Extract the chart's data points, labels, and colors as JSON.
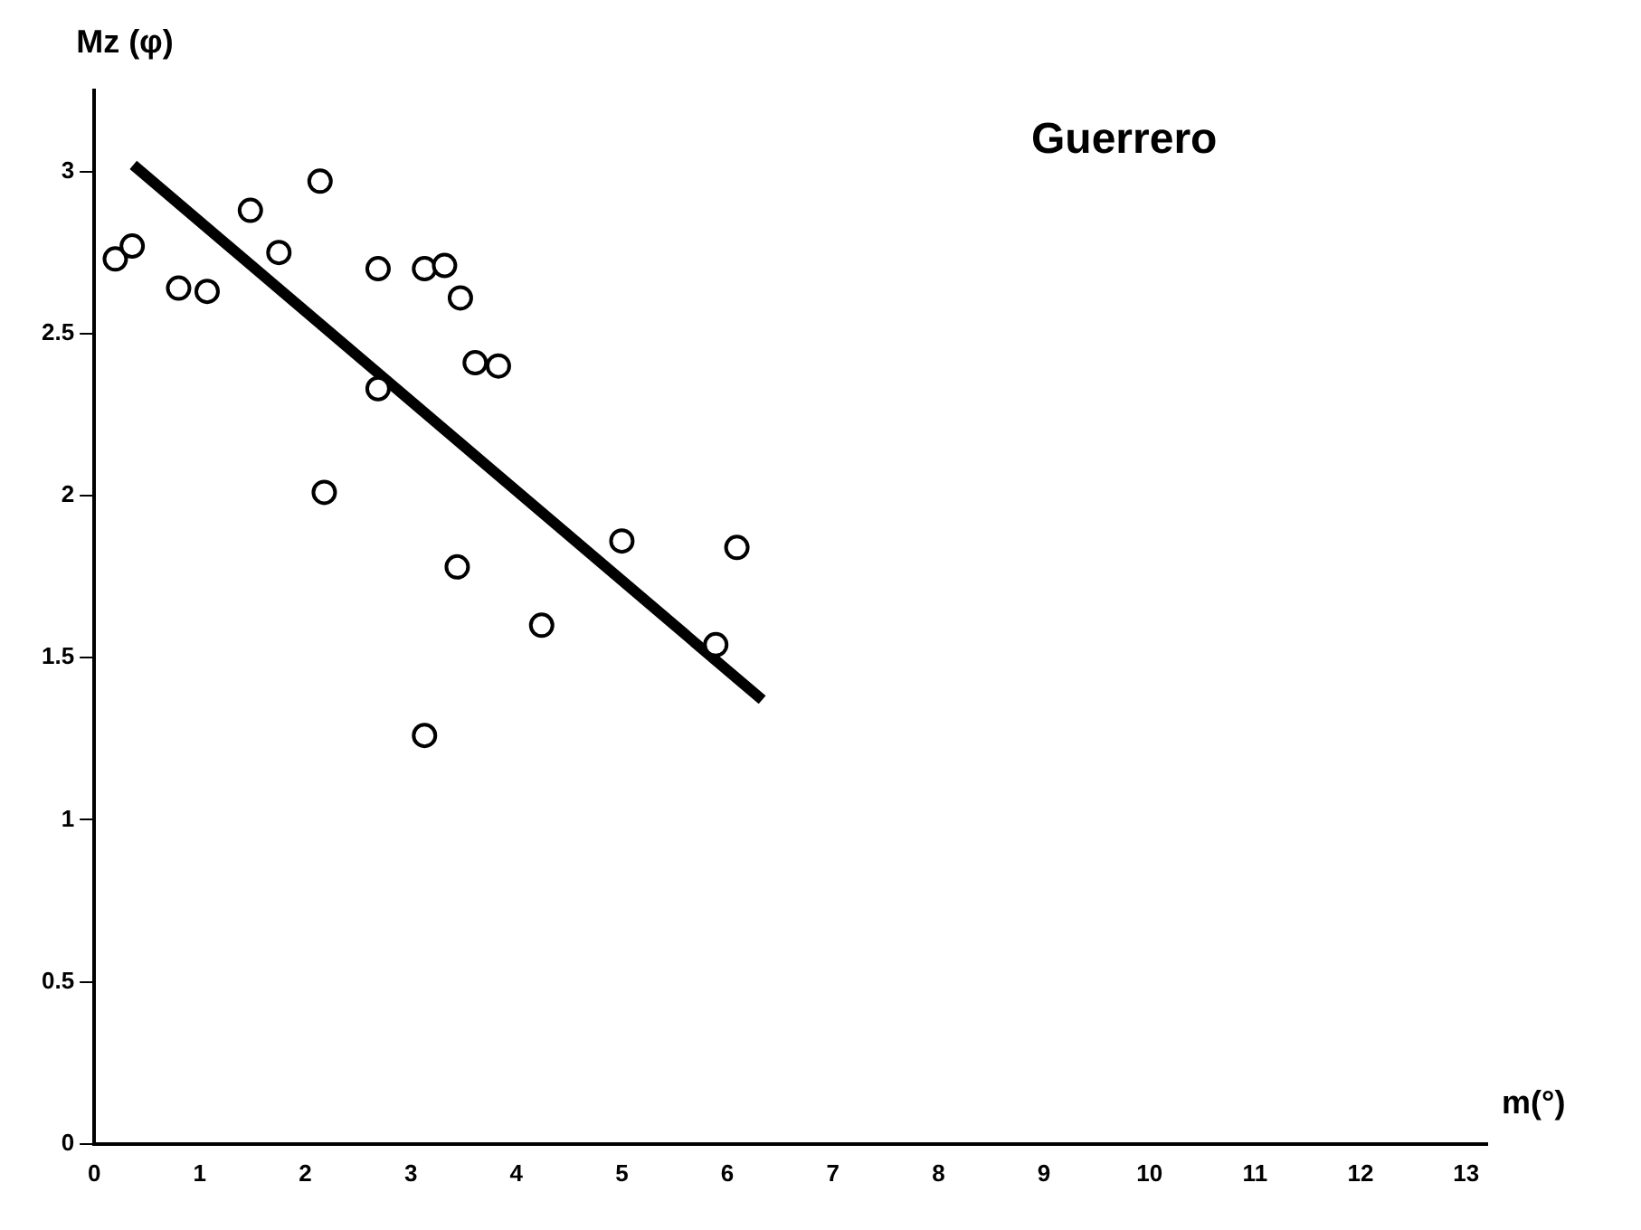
{
  "chart_data": {
    "type": "scatter",
    "title": "Guerrero",
    "xlabel": "m(°)",
    "ylabel": "Mz (φ)",
    "xlim": [
      0,
      13.2
    ],
    "xticks": [
      0,
      1,
      2,
      3,
      4,
      5,
      6,
      7,
      8,
      9,
      10,
      11,
      12,
      13
    ],
    "ylim": [
      0,
      3.25
    ],
    "yticks": [
      0,
      0.5,
      1,
      1.5,
      2,
      2.5,
      3
    ],
    "grid": false,
    "series": [
      {
        "marker": "circle",
        "color": "#000000",
        "x": [
          0.2,
          0.36,
          0.8,
          1.07,
          1.48,
          1.75,
          2.14,
          2.69,
          3.13,
          3.32,
          3.47,
          3.61,
          3.83,
          2.69,
          2.18,
          3.44,
          3.13,
          4.24,
          5.0,
          6.09,
          5.89
        ],
        "values": [
          2.73,
          2.77,
          2.64,
          2.63,
          2.88,
          2.75,
          2.97,
          2.7,
          2.7,
          2.71,
          2.61,
          2.41,
          2.4,
          2.33,
          2.01,
          1.78,
          1.26,
          1.6,
          1.86,
          1.84,
          1.54
        ]
      },
      {
        "type": "line",
        "marker": "none",
        "color": "#000000",
        "x": [
          0.37,
          6.33
        ],
        "values": [
          3.02,
          1.37
        ]
      }
    ]
  }
}
